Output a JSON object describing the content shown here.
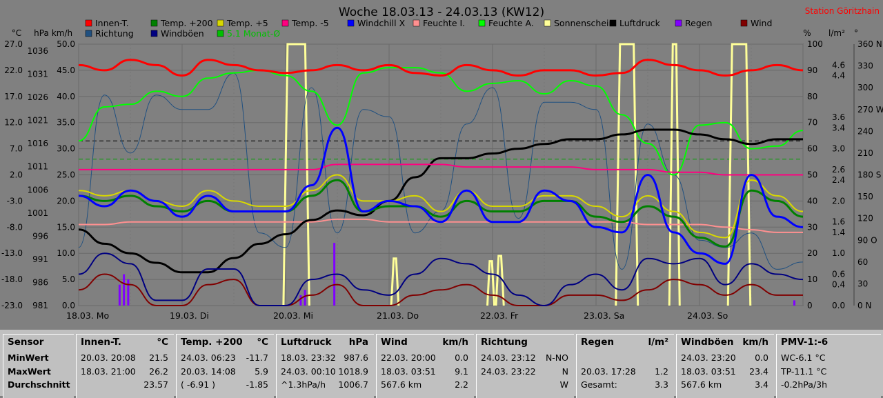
{
  "chart_data": {
    "type": "line",
    "title": "Woche 18.03.13 - 24.03.13 (KW12)",
    "station": "Station Göritzhain",
    "x_day_labels": [
      "18.03. Mo",
      "19.03. Di",
      "20.03. Mi",
      "21.03. Do",
      "22.03. Fr",
      "23.03. Sa",
      "24.03. So"
    ],
    "axes": {
      "left_unit_labels": [
        "°C",
        "hPa",
        "km/h"
      ],
      "right_unit_labels": [
        "%",
        "l/m²",
        "°"
      ],
      "temp_ticks": [
        "27.0",
        "22.0",
        "17.0",
        "12.0",
        "7.0",
        "2.0",
        "-3.0",
        "-8.0",
        "-13.0",
        "-18.0",
        "-23.0"
      ],
      "pressure_ticks": [
        "1036",
        "1031",
        "1026",
        "1021",
        "1016",
        "1011",
        "1006",
        "1001",
        "996",
        "991",
        "986",
        "981"
      ],
      "wind_ticks": [
        "50.0",
        "45.0",
        "40.0",
        "35.0",
        "30.0",
        "25.0",
        "20.0",
        "15.0",
        "10.0",
        "5.0",
        "0.0"
      ],
      "humidity_ticks": [
        "100",
        "90",
        "80",
        "70",
        "60",
        "50",
        "40",
        "30",
        "20",
        "10",
        "0"
      ],
      "rain_ticks": [
        "4.6",
        "4.4",
        "3.6",
        "3.4",
        "3.0",
        "2.6",
        "2.4",
        "2.0",
        "1.6",
        "1.4",
        "1.0",
        "0.6",
        "0.4",
        "0.0"
      ],
      "direction_ticks": [
        "360 N",
        "330",
        "300",
        "270 W",
        "240",
        "210",
        "180 S",
        "150",
        "120",
        "90 O",
        "60",
        "30",
        "0 N"
      ],
      "temp_range": [
        -23,
        27
      ],
      "pressure_range": [
        981,
        1036
      ],
      "wind_range": [
        0,
        50
      ],
      "humidity_range": [
        0,
        100
      ],
      "direction_range": [
        0,
        360
      ],
      "rain_range": [
        0,
        5
      ]
    },
    "legend": [
      {
        "label": "Innen-T.",
        "color": "#ff0000"
      },
      {
        "label": "Temp. +200",
        "color": "#008000"
      },
      {
        "label": "Temp. +5",
        "color": "#d8d800"
      },
      {
        "label": "Temp. -5",
        "color": "#ff0080"
      },
      {
        "label": "Windchill X",
        "color": "#0000ff"
      },
      {
        "label": "Feuchte I.",
        "color": "#ff9090"
      },
      {
        "label": "Feuchte A.",
        "color": "#00ff00"
      },
      {
        "label": "Sonnenschein",
        "color": "#ffff99"
      },
      {
        "label": "Luftdruck",
        "color": "#000000"
      },
      {
        "label": "Regen",
        "color": "#8000ff"
      },
      {
        "label": "Wind",
        "color": "#800000"
      },
      {
        "label": "Richtung",
        "color": "#205080"
      },
      {
        "label": "Windböen",
        "color": "#000080"
      },
      {
        "label": "5.1 Monat-Ø",
        "color": "#00c000"
      }
    ],
    "hours": [
      0,
      6,
      12,
      18,
      24,
      30,
      36,
      42,
      48,
      54,
      60,
      66,
      72,
      78,
      84,
      90,
      96,
      102,
      108,
      114,
      120,
      126,
      132,
      138,
      144,
      150,
      156,
      162,
      168
    ],
    "series": [
      {
        "name": "Innen-T.",
        "color": "#ff0000",
        "axis": "temp",
        "values": [
          23,
          22,
          24,
          23,
          21,
          24,
          23,
          22,
          21.5,
          22,
          23,
          22,
          23,
          21.5,
          21,
          23,
          22,
          21,
          22,
          22,
          21,
          21.5,
          24,
          23,
          22,
          21,
          22,
          23,
          22
        ]
      },
      {
        "name": "Temp. +200",
        "color": "#008000",
        "axis": "temp",
        "values": [
          -2,
          -3,
          -2,
          -4,
          -5,
          -3,
          -5,
          -5,
          -5,
          -2,
          1,
          -5,
          -4,
          -4,
          -6,
          -3,
          -5,
          -5,
          -3,
          -3,
          -6,
          -7,
          -4,
          -6,
          -10,
          -11.7,
          -1,
          -3,
          -6
        ]
      },
      {
        "name": "Temp. +5",
        "color": "#d8d800",
        "axis": "temp",
        "values": [
          -1,
          -2,
          -1,
          -3,
          -4,
          -1,
          -3,
          -4,
          -4,
          -1,
          2,
          -3,
          -3,
          -2,
          -5,
          -1,
          -4,
          -4,
          -2,
          -2,
          -4,
          -6,
          -2,
          -5,
          -9,
          -10,
          1,
          -2,
          -5
        ]
      },
      {
        "name": "Temp. -5",
        "color": "#ff0080",
        "axis": "temp",
        "values": [
          3,
          3,
          3,
          3,
          3,
          3,
          3,
          3,
          3,
          3,
          4,
          4,
          4,
          4,
          4,
          3.5,
          3.5,
          3.5,
          3.5,
          3.5,
          3,
          3,
          3,
          2.5,
          2.5,
          2,
          2,
          2,
          2
        ]
      },
      {
        "name": "Windchill X",
        "color": "#0000ff",
        "axis": "temp",
        "values": [
          -2,
          -4,
          -1,
          -3,
          -6,
          -2,
          -5,
          -5,
          -5,
          0,
          11,
          -5,
          -3,
          -4,
          -7,
          -1,
          -7,
          -7,
          -1,
          -3,
          -8,
          -9,
          2,
          -9,
          -13,
          -15,
          2,
          -6,
          -8
        ]
      },
      {
        "name": "Feuchte I.",
        "color": "#ff9090",
        "axis": "humidity",
        "values": [
          31,
          31,
          32,
          32,
          32,
          32,
          32,
          32,
          32,
          32,
          33,
          33,
          32,
          32,
          32,
          32,
          32,
          32,
          32,
          32,
          32,
          32,
          31,
          31,
          31,
          30,
          29,
          28,
          28
        ]
      },
      {
        "name": "Feuchte A.",
        "color": "#00ff00",
        "axis": "humidity",
        "values": [
          63,
          76,
          77,
          82,
          80,
          87,
          89,
          90,
          88,
          82,
          69,
          89,
          91,
          91,
          89,
          82,
          85,
          86,
          81,
          86,
          84,
          73,
          62,
          50,
          69,
          70,
          60,
          61,
          67
        ]
      },
      {
        "name": "Luftdruck",
        "color": "#000000",
        "axis": "pressure",
        "values": [
          997,
          994,
          992,
          990,
          988,
          988,
          991,
          994,
          996,
          999,
          1001,
          1000,
          1003,
          1008,
          1012,
          1012,
          1013,
          1014,
          1015,
          1016,
          1016,
          1017,
          1018,
          1018,
          1017,
          1016,
          1015,
          1016,
          1016
        ]
      },
      {
        "name": "Wind",
        "color": "#800000",
        "axis": "wind",
        "values": [
          3,
          6,
          4,
          0,
          0,
          4,
          5,
          0,
          0,
          2,
          4,
          0,
          0,
          2,
          3,
          4,
          2,
          0,
          0,
          2,
          2,
          1,
          3,
          5,
          4,
          2,
          4,
          2,
          2
        ]
      },
      {
        "name": "Windböen",
        "color": "#000080",
        "axis": "wind",
        "values": [
          6,
          10,
          8,
          1,
          1,
          7,
          7,
          0,
          0,
          5,
          6,
          3,
          2,
          6,
          9,
          8,
          6,
          2,
          0,
          4,
          6,
          3,
          9,
          8,
          9,
          4,
          8,
          6,
          5
        ]
      },
      {
        "name": "Richtung",
        "color": "#205080",
        "axis": "direction",
        "values": [
          80,
          290,
          210,
          290,
          270,
          270,
          320,
          100,
          80,
          300,
          100,
          270,
          260,
          100,
          130,
          250,
          300,
          120,
          280,
          280,
          270,
          50,
          250,
          180,
          90,
          80,
          100,
          50,
          60
        ]
      }
    ],
    "sunshine_hours": [
      0,
      1,
      2,
      3,
      4,
      5,
      6,
      7,
      8,
      9,
      10,
      11,
      12,
      13,
      14,
      15,
      16,
      17,
      18,
      19,
      20,
      21,
      22,
      23,
      24,
      25,
      26,
      27,
      28,
      29,
      30,
      31,
      32,
      33,
      34,
      35,
      36,
      37,
      38,
      39,
      40,
      41,
      42,
      43,
      44,
      45,
      46,
      47,
      48,
      49,
      50,
      51,
      52,
      53,
      54,
      55,
      56,
      57,
      58,
      59,
      60,
      61,
      62,
      63,
      64,
      65,
      66,
      67,
      68,
      69,
      70,
      71,
      72,
      73,
      74,
      75,
      76,
      77,
      78,
      79,
      80,
      81,
      82,
      83,
      84,
      85,
      86,
      87,
      88,
      89,
      90,
      91,
      92,
      93,
      94,
      95,
      96,
      97,
      98,
      99,
      100,
      101,
      102,
      103,
      104,
      105,
      106,
      107,
      108,
      109,
      110,
      111,
      112,
      113,
      114,
      115,
      116,
      117,
      118,
      119,
      120,
      121,
      122,
      123,
      124,
      125,
      126,
      127,
      128,
      129,
      130,
      131,
      132,
      133,
      134,
      135,
      136,
      137,
      138,
      139,
      140,
      141,
      142,
      143,
      144,
      145,
      146,
      147,
      148,
      149,
      150,
      151,
      152,
      153,
      154,
      155,
      156,
      157,
      158,
      159,
      160,
      161,
      162,
      163,
      164,
      165,
      166,
      167,
      168
    ],
    "sunshine_values": [
      0,
      0,
      0,
      0,
      0,
      0,
      0,
      0,
      0,
      0,
      0,
      0,
      0,
      0,
      0,
      0,
      0,
      0,
      0,
      0,
      0,
      0,
      0,
      0,
      0,
      0,
      0,
      0,
      0,
      0,
      0,
      0,
      0,
      0,
      0,
      0,
      0,
      0,
      0,
      0,
      0,
      0,
      0,
      0,
      0,
      0,
      0,
      0,
      0,
      0,
      0,
      5,
      60,
      100,
      100,
      100,
      100,
      80,
      20,
      0,
      0,
      0,
      0,
      0,
      0,
      0,
      0,
      0,
      0,
      0,
      0,
      0,
      0,
      0,
      0,
      0,
      0,
      0,
      0,
      0,
      0,
      0,
      0,
      0,
      0,
      0,
      0,
      0,
      0,
      0,
      0,
      0,
      0,
      0,
      0,
      0,
      0,
      0,
      0,
      0,
      0,
      0,
      0,
      20,
      0,
      0,
      0,
      0,
      0,
      0,
      0,
      0,
      0,
      0,
      0,
      0,
      0,
      0,
      0,
      0,
      0,
      0,
      0,
      0,
      0,
      0,
      0,
      0,
      0,
      0,
      0,
      0,
      0,
      0,
      0,
      0,
      0,
      0,
      0,
      0,
      0,
      0,
      0,
      0,
      0,
      0,
      0,
      0,
      0,
      0,
      0,
      0,
      0,
      0,
      0,
      0,
      0,
      0,
      0,
      0,
      0,
      0,
      0,
      0,
      0,
      0,
      0,
      0,
      0,
      0,
      0,
      0
    ],
    "sunshine_blocks": [
      {
        "from": 47.5,
        "to": 53.5,
        "value": 100
      },
      {
        "from": 72.5,
        "to": 74.2,
        "value": 18
      },
      {
        "from": 94.8,
        "to": 96.4,
        "value": 17
      },
      {
        "from": 96.8,
        "to": 98.6,
        "value": 19
      },
      {
        "from": 124.6,
        "to": 129.7,
        "value": 100
      },
      {
        "from": 137.0,
        "to": 139.4,
        "value": 100
      },
      {
        "from": 150.6,
        "to": 155.8,
        "value": 100
      }
    ],
    "rain_bars": [
      {
        "hour": 9.5,
        "value": 0.4
      },
      {
        "hour": 10.5,
        "value": 0.6
      },
      {
        "hour": 11.5,
        "value": 0.5
      },
      {
        "hour": 51.5,
        "value": 0.2
      },
      {
        "hour": 52.5,
        "value": 0.3
      },
      {
        "hour": 59.3,
        "value": 1.2
      },
      {
        "hour": 166,
        "value": 0.1
      }
    ],
    "reference_lines": [
      {
        "axis": "temp",
        "value": 8.5,
        "style": "dash",
        "color": "#000000"
      },
      {
        "axis": "temp",
        "value": 5.0,
        "style": "dash",
        "color": "#00a000"
      }
    ]
  },
  "stats": {
    "panels": [
      {
        "title": "Sensor",
        "unit": "",
        "rows": [
          {
            "a": "MinWert",
            "b": "",
            "c": ""
          },
          {
            "a": "MaxWert",
            "b": "",
            "c": ""
          },
          {
            "a": "Durchschnitt",
            "b": "",
            "c": ""
          }
        ]
      },
      {
        "title": "Innen-T.",
        "unit": "°C",
        "rows": [
          {
            "a": "20.03. 20:08",
            "b": "",
            "c": "21.5"
          },
          {
            "a": "18.03. 21:00",
            "b": "",
            "c": "26.2"
          },
          {
            "a": "",
            "b": "",
            "c": "23.57"
          }
        ]
      },
      {
        "title": "Temp. +200",
        "unit": "°C",
        "rows": [
          {
            "a": "24.03. 06:23",
            "b": "",
            "c": "-11.7"
          },
          {
            "a": "20.03. 14:08",
            "b": "",
            "c": "5.9"
          },
          {
            "a": "( -6.91 )",
            "b": "",
            "c": "-1.85"
          }
        ]
      },
      {
        "title": "Luftdruck",
        "unit": "hPa",
        "rows": [
          {
            "a": "18.03. 23:32",
            "b": "",
            "c": "987.6"
          },
          {
            "a": "24.03. 00:10",
            "b": "",
            "c": "1018.9"
          },
          {
            "a": "^1.3hPa/h",
            "b": "",
            "c": "1006.7"
          }
        ]
      },
      {
        "title": "Wind",
        "unit": "km/h",
        "rows": [
          {
            "a": "22.03. 20:00",
            "b": "",
            "c": "0.0"
          },
          {
            "a": "18.03. 03:51",
            "b": "",
            "c": "9.1"
          },
          {
            "a": "567.6 km",
            "b": "",
            "c": "2.2"
          }
        ]
      },
      {
        "title": "Richtung",
        "unit": "",
        "rows": [
          {
            "a": "24.03. 23:12",
            "b": "",
            "c": "N-NO"
          },
          {
            "a": "24.03. 23:22",
            "b": "",
            "c": "N"
          },
          {
            "a": "",
            "b": "",
            "c": "W"
          }
        ]
      },
      {
        "title": "Regen",
        "unit": "l/m²",
        "rows": [
          {
            "a": "",
            "b": "",
            "c": ""
          },
          {
            "a": "20.03. 17:28",
            "b": "",
            "c": "1.2"
          },
          {
            "a": "Gesamt:",
            "b": "",
            "c": "3.3"
          }
        ]
      },
      {
        "title": "Windböen",
        "unit": "km/h",
        "rows": [
          {
            "a": "24.03. 23:20",
            "b": "",
            "c": "0.0"
          },
          {
            "a": "18.03. 03:51",
            "b": "",
            "c": "23.4"
          },
          {
            "a": "567.6 km",
            "b": "",
            "c": "3.4"
          }
        ]
      },
      {
        "title": "PMV-1:-6",
        "unit": "",
        "rows": [
          {
            "a": "WC-6.1 °C",
            "b": "",
            "c": ""
          },
          {
            "a": "TP-11.1 °C",
            "b": "",
            "c": ""
          },
          {
            "a": "-0.2hPa/3h",
            "b": "",
            "c": ""
          }
        ]
      }
    ]
  }
}
